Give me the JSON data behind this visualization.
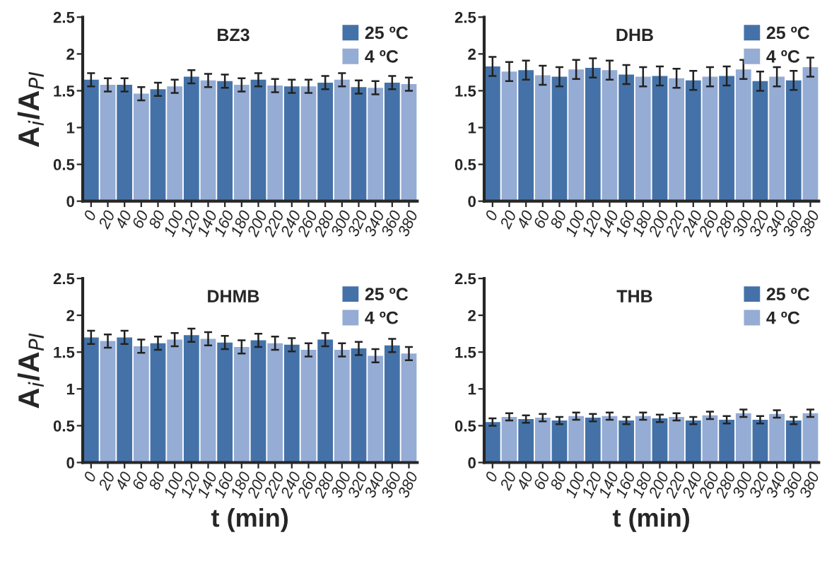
{
  "chart_data": [
    {
      "type": "bar",
      "title": "BZ3",
      "ylabel": "A$_{i}$/A$_{PI}$",
      "categories": [
        "0",
        "20",
        "40",
        "60",
        "80",
        "100",
        "120",
        "140",
        "160",
        "180",
        "200",
        "220",
        "240",
        "260",
        "280",
        "300",
        "320",
        "340",
        "360",
        "380"
      ],
      "ylim": [
        0,
        2.5
      ],
      "yticks": [
        0,
        0.5,
        1,
        1.5,
        2,
        2.5
      ],
      "legend": "top right",
      "grid": false,
      "series": [
        {
          "name": "25 ºC",
          "color": "#4472a8",
          "values": [
            1.65,
            null,
            1.58,
            null,
            1.52,
            null,
            1.69,
            null,
            1.63,
            null,
            1.65,
            null,
            1.56,
            null,
            1.61,
            null,
            1.55,
            null,
            1.61,
            null
          ],
          "errors": [
            0.09,
            null,
            0.09,
            null,
            0.09,
            null,
            0.09,
            null,
            0.09,
            null,
            0.09,
            null,
            0.09,
            null,
            0.09,
            null,
            0.09,
            null,
            0.09,
            null
          ]
        },
        {
          "name": "4 ºC",
          "color": "#95acd4",
          "values": [
            null,
            1.58,
            null,
            1.46,
            null,
            1.56,
            null,
            1.64,
            null,
            1.58,
            null,
            1.57,
            null,
            1.56,
            null,
            1.65,
            null,
            1.54,
            null,
            1.59
          ],
          "errors": [
            null,
            0.09,
            null,
            0.09,
            null,
            0.09,
            null,
            0.09,
            null,
            0.09,
            null,
            0.09,
            null,
            0.09,
            null,
            0.09,
            null,
            0.09,
            null,
            0.09
          ]
        }
      ]
    },
    {
      "type": "bar",
      "title": "DHMB",
      "ylabel": "A$_{i}$/A$_{PI}$",
      "xlabel": "t (min)",
      "categories": [
        "0",
        "20",
        "40",
        "60",
        "80",
        "100",
        "120",
        "140",
        "160",
        "180",
        "200",
        "220",
        "240",
        "260",
        "280",
        "300",
        "320",
        "340",
        "360",
        "380"
      ],
      "ylim": [
        0,
        2.5
      ],
      "yticks": [
        0,
        0.5,
        1,
        1.5,
        2,
        2.5
      ],
      "legend": "top right",
      "grid": false,
      "series": [
        {
          "name": "25 ºC",
          "color": "#4472a8",
          "values": [
            1.7,
            null,
            1.7,
            null,
            1.62,
            null,
            1.73,
            null,
            1.63,
            null,
            1.66,
            null,
            1.6,
            null,
            1.67,
            null,
            1.55,
            null,
            1.59,
            null
          ],
          "errors": [
            0.09,
            null,
            0.09,
            null,
            0.09,
            null,
            0.09,
            null,
            0.09,
            null,
            0.09,
            null,
            0.09,
            null,
            0.09,
            null,
            0.09,
            null,
            0.09,
            null
          ]
        },
        {
          "name": "4 ºC",
          "color": "#95acd4",
          "values": [
            null,
            1.65,
            null,
            1.58,
            null,
            1.67,
            null,
            1.68,
            null,
            1.57,
            null,
            1.62,
            null,
            1.53,
            null,
            1.53,
            null,
            1.45,
            null,
            1.48
          ],
          "errors": [
            null,
            0.09,
            null,
            0.09,
            null,
            0.09,
            null,
            0.09,
            null,
            0.09,
            null,
            0.09,
            null,
            0.09,
            null,
            0.09,
            null,
            0.09,
            null,
            0.09
          ]
        }
      ]
    },
    {
      "type": "bar",
      "title": "DHB",
      "categories": [
        "0",
        "20",
        "40",
        "60",
        "80",
        "100",
        "120",
        "140",
        "160",
        "180",
        "200",
        "220",
        "240",
        "260",
        "280",
        "300",
        "320",
        "340",
        "360",
        "380"
      ],
      "ylim": [
        0,
        2.5
      ],
      "yticks": [
        0,
        0.5,
        1,
        1.5,
        2,
        2.5
      ],
      "legend": "top right",
      "grid": false,
      "series": [
        {
          "name": "25 ºC",
          "color": "#4472a8",
          "values": [
            1.83,
            null,
            1.78,
            null,
            1.69,
            null,
            1.81,
            null,
            1.72,
            null,
            1.7,
            null,
            1.64,
            null,
            1.7,
            null,
            1.63,
            null,
            1.64,
            null
          ],
          "errors": [
            0.13,
            null,
            0.13,
            null,
            0.13,
            null,
            0.13,
            null,
            0.13,
            null,
            0.13,
            null,
            0.13,
            null,
            0.13,
            null,
            0.13,
            null,
            0.13,
            null
          ]
        },
        {
          "name": "4 ºC",
          "color": "#95acd4",
          "values": [
            null,
            1.76,
            null,
            1.71,
            null,
            1.79,
            null,
            1.78,
            null,
            1.69,
            null,
            1.67,
            null,
            1.69,
            null,
            1.79,
            null,
            1.69,
            null,
            1.82
          ],
          "errors": [
            null,
            0.13,
            null,
            0.13,
            null,
            0.13,
            null,
            0.13,
            null,
            0.13,
            null,
            0.13,
            null,
            0.13,
            null,
            0.13,
            null,
            0.13,
            null,
            0.13
          ]
        }
      ]
    },
    {
      "type": "bar",
      "title": "THB",
      "xlabel": "t (min)",
      "categories": [
        "0",
        "20",
        "40",
        "60",
        "80",
        "100",
        "120",
        "140",
        "160",
        "180",
        "200",
        "220",
        "240",
        "260",
        "280",
        "300",
        "320",
        "340",
        "360",
        "380"
      ],
      "ylim": [
        0,
        2.5
      ],
      "yticks": [
        0,
        0.5,
        1,
        1.5,
        2,
        2.5
      ],
      "legend": "top right",
      "grid": false,
      "series": [
        {
          "name": "25 ºC",
          "color": "#4472a8",
          "values": [
            0.55,
            null,
            0.59,
            null,
            0.57,
            null,
            0.61,
            null,
            0.57,
            null,
            0.6,
            null,
            0.57,
            null,
            0.58,
            null,
            0.58,
            null,
            0.57,
            null
          ],
          "errors": [
            0.05,
            null,
            0.05,
            null,
            0.05,
            null,
            0.05,
            null,
            0.05,
            null,
            0.05,
            null,
            0.05,
            null,
            0.05,
            null,
            0.05,
            null,
            0.05,
            null
          ]
        },
        {
          "name": "4 ºC",
          "color": "#95acd4",
          "values": [
            null,
            0.62,
            null,
            0.61,
            null,
            0.63,
            null,
            0.63,
            null,
            0.63,
            null,
            0.62,
            null,
            0.64,
            null,
            0.67,
            null,
            0.66,
            null,
            0.67
          ],
          "errors": [
            null,
            0.05,
            null,
            0.05,
            null,
            0.05,
            null,
            0.05,
            null,
            0.05,
            null,
            0.05,
            null,
            0.05,
            null,
            0.05,
            null,
            0.05,
            null,
            0.05
          ]
        }
      ]
    }
  ]
}
